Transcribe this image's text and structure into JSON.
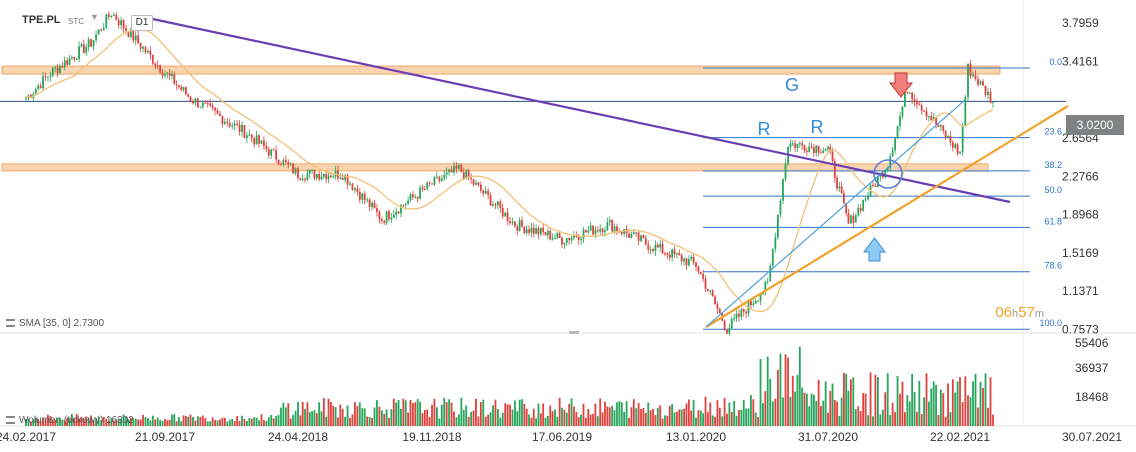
{
  "header": {
    "symbol": "TPE.PL",
    "exchange_tag": "STC",
    "interval": "D1"
  },
  "current_price_tag": "3.0200",
  "countdown": {
    "hours": "06",
    "h_label": "h",
    "minutes": "57",
    "m_label": "m"
  },
  "indicators": {
    "sma_label": "SMA [35, 0] 2.7300",
    "volume_label": "Wolumen (tickowy) 16302"
  },
  "annotations": {
    "G": "G",
    "R_left": "R",
    "R_right": "R"
  },
  "colors": {
    "candle_up": "#26a65b",
    "candle_down": "#e0413c",
    "sma": "#f2c175",
    "trendline_purple": "#6b3fb3",
    "trendline_orange": "#f2a12a",
    "fib_lines": "#2f73c8",
    "zone": "#f7b77a",
    "arrow_down": "#e0413c",
    "arrow_up": "#4aa3e8"
  },
  "chart_data": {
    "type": "candlestick",
    "title": "TPE.PL",
    "timeframe": "D1",
    "x_axis_labels": [
      "24.02.2017",
      "21.09.2017",
      "24.04.2018",
      "19.11.2018",
      "17.06.2019",
      "13.01.2020",
      "31.07.2020",
      "22.02.2021",
      "30.07.2021"
    ],
    "y_axis_ticks": [
      3.7959,
      3.4161,
      2.6564,
      2.2766,
      1.8968,
      1.5169,
      1.1371,
      0.7573
    ],
    "last_price": 3.02,
    "price_path": [
      {
        "date": "24.02.2017",
        "price": 3.05
      },
      {
        "date": "2017-04",
        "price": 3.3
      },
      {
        "date": "2017-06",
        "price": 3.6
      },
      {
        "date": "2017-07",
        "price": 3.9
      },
      {
        "date": "21.09.2017",
        "price": 3.3
      },
      {
        "date": "2017-11",
        "price": 3.05
      },
      {
        "date": "2018-02",
        "price": 2.7
      },
      {
        "date": "24.04.2018",
        "price": 2.3
      },
      {
        "date": "2018-07",
        "price": 2.3
      },
      {
        "date": "2018-09",
        "price": 1.85
      },
      {
        "date": "19.11.2018",
        "price": 2.2
      },
      {
        "date": "2019-01",
        "price": 2.35
      },
      {
        "date": "2019-04",
        "price": 1.8
      },
      {
        "date": "17.06.2019",
        "price": 1.65
      },
      {
        "date": "2019-09",
        "price": 1.8
      },
      {
        "date": "2019-11",
        "price": 1.6
      },
      {
        "date": "13.01.2020",
        "price": 1.4
      },
      {
        "date": "2020-03",
        "price": 0.76
      },
      {
        "date": "2020-05",
        "price": 1.2
      },
      {
        "date": "2020-06",
        "price": 2.6
      },
      {
        "date": "31.07.2020",
        "price": 2.55
      },
      {
        "date": "2020-09",
        "price": 1.8
      },
      {
        "date": "2020-11",
        "price": 2.4
      },
      {
        "date": "2020-12",
        "price": 3.15
      },
      {
        "date": "22.02.2021",
        "price": 2.5
      },
      {
        "date": "2021-03",
        "price": 3.35
      },
      {
        "date": "2021-04",
        "price": 3.02
      }
    ],
    "sma": {
      "name": "SMA [35, 0]",
      "period": 35,
      "last_value": 2.73
    },
    "volume": {
      "name": "Wolumen (tickowy)",
      "last_value": 16302,
      "axis_ticks": [
        55406,
        36937,
        18468
      ]
    },
    "fibonacci": [
      {
        "label": "0.0",
        "price": 3.35
      },
      {
        "label": "23.6",
        "price": 2.66
      },
      {
        "label": "38.2",
        "price": 2.33
      },
      {
        "label": "50.0",
        "price": 2.08
      },
      {
        "label": "61.8",
        "price": 1.77
      },
      {
        "label": "78.6",
        "price": 1.33
      },
      {
        "label": "100.0",
        "price": 0.76
      }
    ],
    "horizontal_levels": [
      3.02
    ],
    "zones": [
      {
        "price_top": 3.37,
        "price_bottom": 3.29
      },
      {
        "price_top": 2.4,
        "price_bottom": 2.33
      }
    ]
  }
}
